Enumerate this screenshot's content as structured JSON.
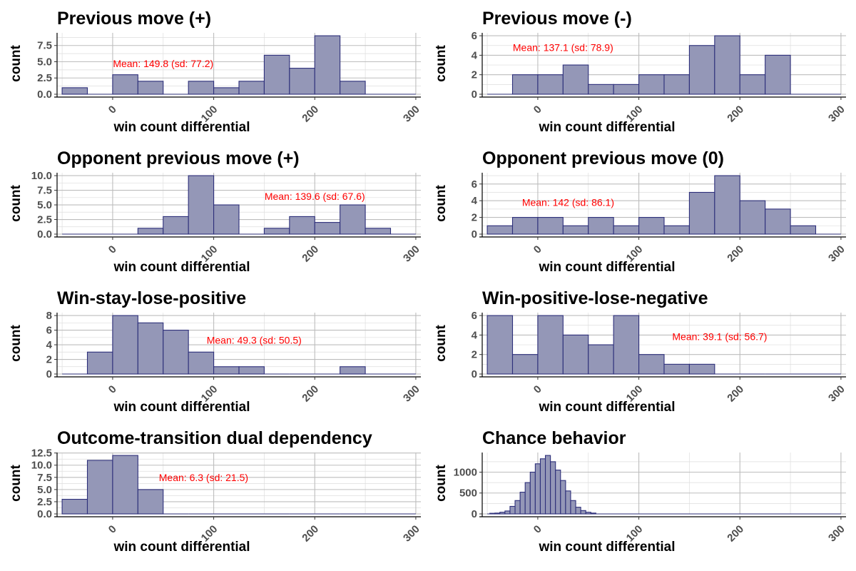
{
  "colors": {
    "bar_fill": "#9497b7",
    "bar_stroke": "#2d2f7a",
    "annotation": "#ff0000"
  },
  "chart_data": [
    {
      "type": "bar",
      "title": "Previous move (+)",
      "xlabel": "win count differential",
      "ylabel": "count",
      "bin_width": 25,
      "bin_start": -50,
      "values": [
        1,
        0,
        3,
        2,
        0,
        2,
        1,
        2,
        6,
        4,
        9,
        2,
        0,
        0
      ],
      "ylim": [
        0,
        9.45
      ],
      "yticks": [
        0,
        2.5,
        5,
        7.5
      ],
      "ytick_labels": [
        "0.0",
        "2.5",
        "5.0",
        "7.5"
      ],
      "xlim": [
        -55,
        305
      ],
      "xticks": [
        0,
        100,
        200,
        300
      ],
      "xtick_labels": [
        "0",
        "100",
        "200",
        "300"
      ],
      "annotation": {
        "text": "Mean: 149.8 (sd: 77.2)",
        "x": 50,
        "y": 4.75
      },
      "grid": true
    },
    {
      "type": "bar",
      "title": "Previous move (-)",
      "xlabel": "win count differential",
      "ylabel": "count",
      "bin_width": 25,
      "bin_start": -50,
      "values": [
        0,
        2,
        2,
        3,
        1,
        1,
        2,
        2,
        5,
        6,
        2,
        4,
        0,
        0
      ],
      "ylim": [
        0,
        6.3
      ],
      "yticks": [
        0,
        2,
        4,
        6
      ],
      "ytick_labels": [
        "0",
        "2",
        "4",
        "6"
      ],
      "xlim": [
        -55,
        305
      ],
      "xticks": [
        0,
        100,
        200,
        300
      ],
      "xtick_labels": [
        "0",
        "100",
        "200",
        "300"
      ],
      "annotation": {
        "text": "Mean: 137.1 (sd: 78.9)",
        "x": 25,
        "y": 4.8
      },
      "grid": true
    },
    {
      "type": "bar",
      "title": "Opponent previous move (+)",
      "xlabel": "win count differential",
      "ylabel": "count",
      "bin_width": 25,
      "bin_start": -50,
      "values": [
        0,
        0,
        0,
        1,
        3,
        10,
        5,
        0,
        1,
        3,
        2,
        5,
        1,
        0
      ],
      "ylim": [
        0,
        10.5
      ],
      "yticks": [
        0,
        2.5,
        5,
        7.5,
        10
      ],
      "ytick_labels": [
        "0.0",
        "2.5",
        "5.0",
        "7.5",
        "10.0"
      ],
      "xlim": [
        -55,
        305
      ],
      "xticks": [
        0,
        100,
        200,
        300
      ],
      "xtick_labels": [
        "0",
        "100",
        "200",
        "300"
      ],
      "annotation": {
        "text": "Mean: 139.6 (sd: 67.6)",
        "x": 200,
        "y": 6.5
      },
      "grid": true
    },
    {
      "type": "bar",
      "title": "Opponent previous move (0)",
      "xlabel": "win count differential",
      "ylabel": "count",
      "bin_width": 25,
      "bin_start": -50,
      "values": [
        1,
        2,
        2,
        1,
        2,
        1,
        2,
        1,
        5,
        7,
        4,
        3,
        1,
        0
      ],
      "ylim": [
        0,
        7.35
      ],
      "yticks": [
        0,
        2,
        4,
        6
      ],
      "ytick_labels": [
        "0",
        "2",
        "4",
        "6"
      ],
      "xlim": [
        -55,
        305
      ],
      "xticks": [
        0,
        100,
        200,
        300
      ],
      "xtick_labels": [
        "0",
        "100",
        "200",
        "300"
      ],
      "annotation": {
        "text": "Mean: 142 (sd: 86.1)",
        "x": 30,
        "y": 3.8
      },
      "grid": true
    },
    {
      "type": "bar",
      "title": "Win-stay-lose-positive",
      "xlabel": "win count differential",
      "ylabel": "count",
      "bin_width": 25,
      "bin_start": -50,
      "values": [
        0,
        3,
        8,
        7,
        6,
        3,
        1,
        1,
        0,
        0,
        0,
        1,
        0,
        0
      ],
      "ylim": [
        0,
        8.4
      ],
      "yticks": [
        0,
        2,
        4,
        6,
        8
      ],
      "ytick_labels": [
        "0",
        "2",
        "4",
        "6",
        "8"
      ],
      "xlim": [
        -55,
        305
      ],
      "xticks": [
        0,
        100,
        200,
        300
      ],
      "xtick_labels": [
        "0",
        "100",
        "200",
        "300"
      ],
      "annotation": {
        "text": "Mean: 49.3 (sd: 50.5)",
        "x": 140,
        "y": 4.65
      },
      "grid": true
    },
    {
      "type": "bar",
      "title": "Win-positive-lose-negative",
      "xlabel": "win count differential",
      "ylabel": "count",
      "bin_width": 25,
      "bin_start": -50,
      "values": [
        6,
        2,
        6,
        4,
        3,
        6,
        2,
        1,
        1,
        0,
        0,
        0,
        0,
        0
      ],
      "ylim": [
        0,
        6.3
      ],
      "yticks": [
        0,
        2,
        4,
        6
      ],
      "ytick_labels": [
        "0",
        "2",
        "4",
        "6"
      ],
      "xlim": [
        -55,
        305
      ],
      "xticks": [
        0,
        100,
        200,
        300
      ],
      "xtick_labels": [
        "0",
        "100",
        "200",
        "300"
      ],
      "annotation": {
        "text": "Mean: 39.1 (sd: 56.7)",
        "x": 180,
        "y": 3.85
      },
      "grid": true
    },
    {
      "type": "bar",
      "title": "Outcome-transition dual dependency",
      "xlabel": "win count differential",
      "ylabel": "count",
      "bin_width": 25,
      "bin_start": -50,
      "values": [
        3,
        11,
        12,
        5,
        0,
        0,
        0,
        0,
        0,
        0,
        0,
        0,
        0,
        0
      ],
      "ylim": [
        0,
        12.6
      ],
      "yticks": [
        0,
        2.5,
        5,
        7.5,
        10,
        12.5
      ],
      "ytick_labels": [
        "0.0",
        "2.5",
        "5.0",
        "7.5",
        "10.0",
        "12.5"
      ],
      "xlim": [
        -55,
        305
      ],
      "xticks": [
        0,
        100,
        200,
        300
      ],
      "xtick_labels": [
        "0",
        "100",
        "200",
        "300"
      ],
      "annotation": {
        "text": "Mean: 6.3 (sd: 21.5)",
        "x": 90,
        "y": 7.5
      },
      "grid": true
    },
    {
      "type": "bar",
      "title": "Chance behavior",
      "xlabel": "win count differential",
      "ylabel": "count",
      "bin_width": 5,
      "bin_start": -50,
      "values": [
        0,
        0,
        0,
        0,
        0,
        0,
        0,
        0,
        0,
        0,
        0,
        0,
        0,
        0,
        0,
        0,
        0,
        0,
        0,
        0,
        0,
        0,
        0,
        0,
        0,
        0,
        0,
        0,
        0,
        0,
        0,
        0,
        0,
        0,
        0,
        0,
        0,
        0,
        0,
        0,
        0,
        0,
        0,
        0,
        0,
        0,
        0,
        0,
        0,
        0,
        0,
        0,
        0,
        0,
        0,
        0,
        0,
        0,
        0,
        0,
        0,
        0,
        0,
        0,
        0,
        0,
        0,
        0,
        0,
        0
      ],
      "chance_bins": [
        [
          -45,
          15
        ],
        [
          -40,
          20
        ],
        [
          -35,
          40
        ],
        [
          -30,
          70
        ],
        [
          -25,
          180
        ],
        [
          -20,
          320
        ],
        [
          -15,
          520
        ],
        [
          -10,
          750
        ],
        [
          -5,
          1000
        ],
        [
          0,
          1200
        ],
        [
          5,
          1320
        ],
        [
          10,
          1400
        ],
        [
          15,
          1250
        ],
        [
          20,
          1050
        ],
        [
          25,
          800
        ],
        [
          30,
          550
        ],
        [
          35,
          320
        ],
        [
          40,
          160
        ],
        [
          45,
          80
        ],
        [
          50,
          40
        ],
        [
          55,
          20
        ]
      ],
      "ylim": [
        0,
        1470
      ],
      "yticks": [
        0,
        500,
        1000
      ],
      "ytick_labels": [
        "0",
        "500",
        "1000"
      ],
      "xlim": [
        -55,
        305
      ],
      "xticks": [
        0,
        100,
        200,
        300
      ],
      "xtick_labels": [
        "0",
        "100",
        "200",
        "300"
      ],
      "grid": true
    }
  ]
}
